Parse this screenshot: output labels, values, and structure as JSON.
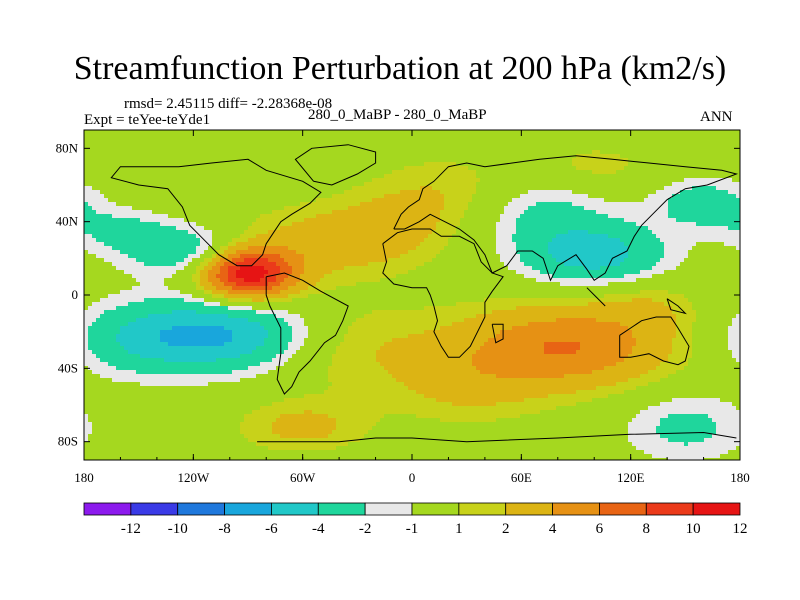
{
  "chart_data": {
    "type": "heatmap",
    "title": "Streamfunction Perturbation at 200 hPa (km2/s)",
    "stats": "rmsd= 2.45115 diff= -2.28368e-08",
    "experiment": "Expt = teYee-teYde1",
    "case": "280_0_MaBP - 280_0_MaBP",
    "season": "ANN",
    "x_range": [
      -180,
      180
    ],
    "y_range": [
      -90,
      90
    ],
    "x_ticks": [
      {
        "value": -180,
        "label": "180"
      },
      {
        "value": -120,
        "label": "120W"
      },
      {
        "value": -60,
        "label": "60W"
      },
      {
        "value": 0,
        "label": "0"
      },
      {
        "value": 60,
        "label": "60E"
      },
      {
        "value": 120,
        "label": "120E"
      },
      {
        "value": 180,
        "label": "180"
      }
    ],
    "y_ticks": [
      {
        "value": 80,
        "label": "80N"
      },
      {
        "value": 40,
        "label": "40N"
      },
      {
        "value": 0,
        "label": "0"
      },
      {
        "value": -40,
        "label": "40S"
      },
      {
        "value": -80,
        "label": "80S"
      }
    ],
    "colorbar": {
      "colors": [
        "#8c1aed",
        "#3a3ae6",
        "#1f78dc",
        "#19a6dc",
        "#21c8c8",
        "#1fd69c",
        "#e8e8e8",
        "#a5d81f",
        "#c8d21a",
        "#dcb414",
        "#e69114",
        "#e86414",
        "#eb3a1a",
        "#e61414"
      ],
      "labels": [
        "-12",
        "-10",
        "-8",
        "-6",
        "-4",
        "-2",
        "-1",
        "1",
        "2",
        "4",
        "6",
        "8",
        "10",
        "12"
      ],
      "levels": [
        -13,
        -12,
        -10,
        -8,
        -6,
        -4,
        -2,
        -1,
        1,
        2,
        4,
        6,
        8,
        10,
        12
      ]
    },
    "anomalies": [
      {
        "lon": -90,
        "lat": 12,
        "slon": 18,
        "slat": 10,
        "amp": 11.5
      },
      {
        "lon": -60,
        "lat": 28,
        "slon": 35,
        "slat": 14,
        "amp": 2.5
      },
      {
        "lon": -15,
        "lat": 35,
        "slon": 25,
        "slat": 14,
        "amp": 2
      },
      {
        "lon": -120,
        "lat": 24,
        "slon": 28,
        "slat": 10,
        "amp": -4
      },
      {
        "lon": -160,
        "lat": 36,
        "slon": 20,
        "slat": 8,
        "amp": -2
      },
      {
        "lon": -105,
        "lat": -22,
        "slon": 35,
        "slat": 14,
        "amp": -6.5
      },
      {
        "lon": -155,
        "lat": -24,
        "slon": 25,
        "slat": 14,
        "amp": -2.5
      },
      {
        "lon": -35,
        "lat": -28,
        "slon": 40,
        "slat": 18,
        "amp": 2
      },
      {
        "lon": -60,
        "lat": -72,
        "slon": 25,
        "slat": 10,
        "amp": 2.5
      },
      {
        "lon": 85,
        "lat": -28,
        "slon": 40,
        "slat": 16,
        "amp": 6
      },
      {
        "lon": 30,
        "lat": -50,
        "slon": 30,
        "slat": 15,
        "amp": 2
      },
      {
        "lon": 150,
        "lat": -72,
        "slon": 25,
        "slat": 14,
        "amp": -2.5
      },
      {
        "lon": 100,
        "lat": 22,
        "slon": 28,
        "slat": 12,
        "amp": -5
      },
      {
        "lon": 70,
        "lat": 46,
        "slon": 28,
        "slat": 14,
        "amp": -2.5
      },
      {
        "lon": 20,
        "lat": 55,
        "slon": 30,
        "slat": 15,
        "amp": 2
      },
      {
        "lon": 160,
        "lat": 50,
        "slon": 20,
        "slat": 10,
        "amp": -3
      },
      {
        "lon": 100,
        "lat": 70,
        "slon": 25,
        "slat": 10,
        "amp": 1.5
      },
      {
        "lon": 130,
        "lat": -5,
        "slon": 20,
        "slat": 10,
        "amp": 1.5
      }
    ],
    "coastlines": [
      [
        [
          -85,
          -80
        ],
        [
          -60,
          -80
        ],
        [
          -40,
          -80
        ],
        [
          -20,
          -78
        ],
        [
          0,
          -78
        ],
        [
          30,
          -80
        ],
        [
          80,
          -78
        ],
        [
          120,
          -76
        ],
        [
          160,
          -75
        ],
        [
          178,
          -78
        ]
      ],
      [
        [
          -128,
          70
        ],
        [
          -110,
          72
        ],
        [
          -90,
          74
        ],
        [
          -80,
          68
        ],
        [
          -60,
          62
        ],
        [
          -50,
          56
        ],
        [
          -56,
          50
        ],
        [
          -66,
          44
        ],
        [
          -72,
          40
        ],
        [
          -76,
          34
        ],
        [
          -80,
          28
        ],
        [
          -82,
          22
        ],
        [
          -88,
          16
        ],
        [
          -96,
          16
        ],
        [
          -106,
          22
        ],
        [
          -116,
          32
        ],
        [
          -122,
          38
        ],
        [
          -126,
          48
        ],
        [
          -134,
          58
        ],
        [
          -150,
          60
        ],
        [
          -165,
          64
        ],
        [
          -160,
          70
        ],
        [
          -140,
          70
        ],
        [
          -128,
          70
        ]
      ],
      [
        [
          -80,
          10
        ],
        [
          -70,
          12
        ],
        [
          -60,
          8
        ],
        [
          -50,
          2
        ],
        [
          -35,
          -6
        ],
        [
          -38,
          -14
        ],
        [
          -42,
          -22
        ],
        [
          -48,
          -26
        ],
        [
          -56,
          -36
        ],
        [
          -62,
          -42
        ],
        [
          -66,
          -50
        ],
        [
          -70,
          -54
        ],
        [
          -74,
          -46
        ],
        [
          -72,
          -32
        ],
        [
          -72,
          -18
        ],
        [
          -78,
          -6
        ],
        [
          -80,
          0
        ],
        [
          -80,
          10
        ]
      ],
      [
        [
          -10,
          36
        ],
        [
          -6,
          44
        ],
        [
          -2,
          48
        ],
        [
          4,
          52
        ],
        [
          6,
          58
        ],
        [
          12,
          62
        ],
        [
          20,
          70
        ],
        [
          30,
          72
        ],
        [
          40,
          70
        ],
        [
          55,
          72
        ],
        [
          70,
          74
        ],
        [
          90,
          76
        ],
        [
          110,
          74
        ],
        [
          130,
          72
        ],
        [
          150,
          70
        ],
        [
          170,
          68
        ],
        [
          178,
          66
        ],
        [
          162,
          60
        ],
        [
          150,
          58
        ],
        [
          140,
          52
        ],
        [
          132,
          44
        ],
        [
          126,
          38
        ],
        [
          122,
          32
        ],
        [
          118,
          24
        ],
        [
          110,
          20
        ],
        [
          106,
          12
        ],
        [
          100,
          8
        ],
        [
          96,
          14
        ],
        [
          90,
          22
        ],
        [
          80,
          16
        ],
        [
          76,
          8
        ],
        [
          72,
          20
        ],
        [
          66,
          24
        ],
        [
          58,
          24
        ],
        [
          52,
          16
        ],
        [
          44,
          12
        ],
        [
          40,
          22
        ],
        [
          34,
          30
        ],
        [
          26,
          36
        ],
        [
          18,
          40
        ],
        [
          10,
          44
        ],
        [
          4,
          40
        ],
        [
          -4,
          36
        ],
        [
          -10,
          36
        ]
      ],
      [
        [
          -16,
          28
        ],
        [
          -14,
          18
        ],
        [
          -16,
          12
        ],
        [
          -10,
          6
        ],
        [
          0,
          4
        ],
        [
          8,
          4
        ],
        [
          10,
          0
        ],
        [
          12,
          -6
        ],
        [
          14,
          -14
        ],
        [
          12,
          -20
        ],
        [
          16,
          -28
        ],
        [
          20,
          -34
        ],
        [
          26,
          -34
        ],
        [
          32,
          -28
        ],
        [
          36,
          -20
        ],
        [
          40,
          -12
        ],
        [
          40,
          -4
        ],
        [
          44,
          2
        ],
        [
          50,
          10
        ],
        [
          44,
          12
        ],
        [
          38,
          18
        ],
        [
          34,
          28
        ],
        [
          26,
          32
        ],
        [
          16,
          32
        ],
        [
          10,
          36
        ],
        [
          0,
          36
        ],
        [
          -8,
          34
        ],
        [
          -16,
          28
        ]
      ],
      [
        [
          114,
          -22
        ],
        [
          114,
          -34
        ],
        [
          120,
          -34
        ],
        [
          130,
          -32
        ],
        [
          138,
          -36
        ],
        [
          146,
          -38
        ],
        [
          150,
          -36
        ],
        [
          152,
          -28
        ],
        [
          146,
          -18
        ],
        [
          142,
          -12
        ],
        [
          134,
          -12
        ],
        [
          126,
          -14
        ],
        [
          120,
          -18
        ],
        [
          114,
          -22
        ]
      ],
      [
        [
          -54,
          62
        ],
        [
          -44,
          60
        ],
        [
          -30,
          66
        ],
        [
          -20,
          72
        ],
        [
          -20,
          78
        ],
        [
          -35,
          82
        ],
        [
          -55,
          80
        ],
        [
          -64,
          74
        ],
        [
          -54,
          62
        ]
      ],
      [
        [
          44,
          -16
        ],
        [
          50,
          -16
        ],
        [
          50,
          -24
        ],
        [
          46,
          -26
        ],
        [
          44,
          -16
        ]
      ],
      [
        [
          96,
          4
        ],
        [
          106,
          -6
        ],
        [
          100,
          0
        ],
        [
          96,
          4
        ]
      ],
      [
        [
          140,
          -2
        ],
        [
          146,
          -6
        ],
        [
          150,
          -10
        ],
        [
          142,
          -8
        ],
        [
          140,
          -2
        ]
      ]
    ]
  }
}
